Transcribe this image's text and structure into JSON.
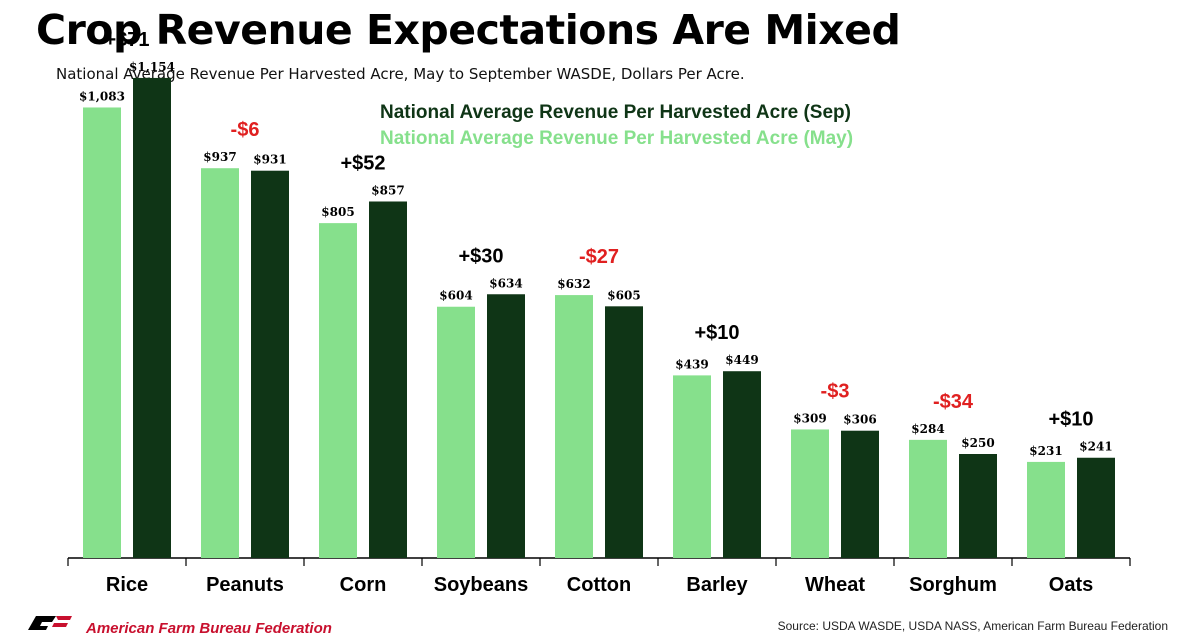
{
  "title": "Crop Revenue Expectations Are Mixed",
  "subtitle": "National Average Revenue Per Harvested Acre, May to September WASDE, Dollars Per Acre.",
  "footer": {
    "organization": "American Farm Bureau Federation",
    "source": "Source: USDA WASDE, USDA NASS, American Farm Bureau Federation"
  },
  "colors": {
    "may": "#86e08c",
    "sep": "#0f3516",
    "positive": "#000000",
    "negative": "#e02020",
    "brand": "#c8102e"
  },
  "chart_data": {
    "type": "bar",
    "title": "Crop Revenue Expectations Are Mixed",
    "categories": [
      "Rice",
      "Peanuts",
      "Corn",
      "Soybeans",
      "Cotton",
      "Barley",
      "Wheat",
      "Sorghum",
      "Oats"
    ],
    "series": [
      {
        "name": "National Average Revenue Per Harvested Acre (May)",
        "values": [
          1083,
          937,
          805,
          604,
          632,
          439,
          309,
          284,
          231
        ],
        "labels": [
          "$1,083",
          "$937",
          "$805",
          "$604",
          "$632",
          "$439",
          "$309",
          "$284",
          "$231"
        ]
      },
      {
        "name": "National Average Revenue Per Harvested Acre (Sep)",
        "values": [
          1154,
          931,
          857,
          634,
          605,
          449,
          306,
          250,
          241
        ],
        "labels": [
          "$1,154",
          "$931",
          "$857",
          "$634",
          "$605",
          "$449",
          "$306",
          "$250",
          "$241"
        ]
      }
    ],
    "changes": [
      71,
      -6,
      52,
      30,
      -27,
      10,
      -3,
      -34,
      10
    ],
    "change_labels": [
      "+$71",
      "-$6",
      "+$52",
      "+$30",
      "-$27",
      "+$10",
      "-$3",
      "-$34",
      "+$10"
    ],
    "legend_order": [
      "Sep",
      "May"
    ],
    "legend_position": "top-center",
    "ylim": [
      0,
      1250
    ],
    "grid": false,
    "y_axis_visible": false
  }
}
